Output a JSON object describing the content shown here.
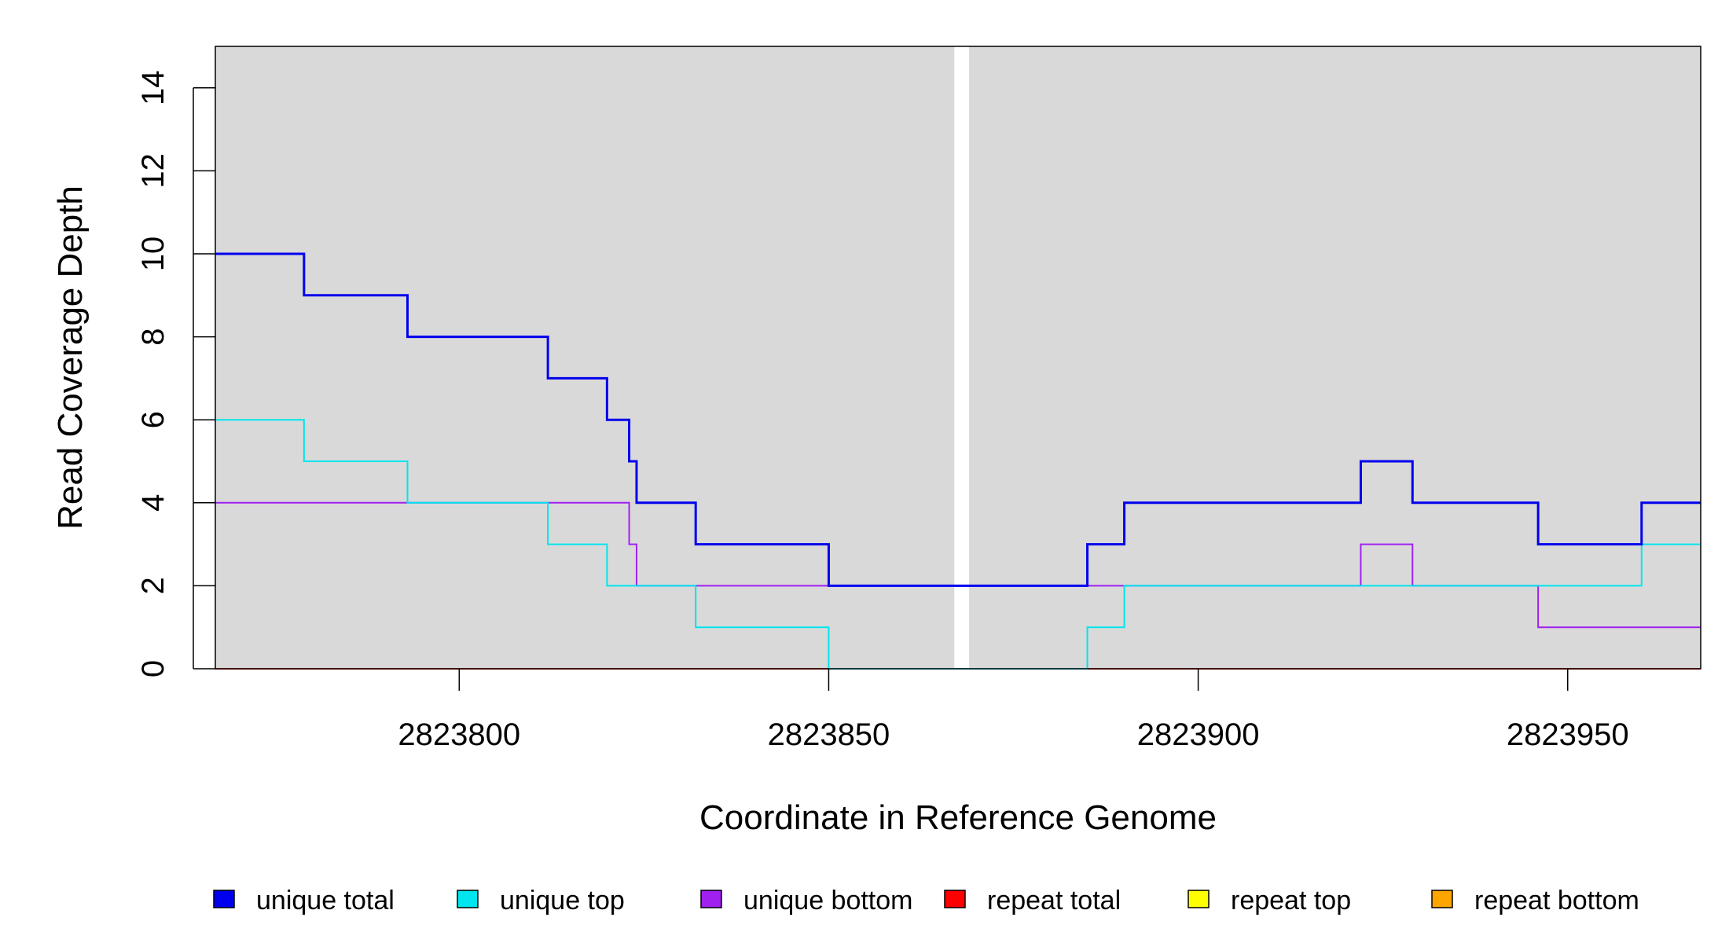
{
  "chart_data": {
    "type": "line",
    "step": true,
    "title": "",
    "xlabel": "Coordinate in Reference Genome",
    "ylabel": "Read Coverage Depth",
    "xlim": [
      2823767,
      2823968
    ],
    "ylim": [
      0,
      15
    ],
    "x_ticks": [
      2823800,
      2823850,
      2823900,
      2823950
    ],
    "y_ticks": [
      0,
      2,
      4,
      6,
      8,
      10,
      12,
      14
    ],
    "background_color": "#d9d9d9",
    "grid": false,
    "gap": {
      "start": 2823867,
      "end": 2823869,
      "color": "#ffffff"
    },
    "legend_position": "bottom",
    "series": [
      {
        "name": "unique total",
        "color": "#0000ee",
        "steps": [
          [
            2823767,
            10
          ],
          [
            2823779,
            9
          ],
          [
            2823793,
            8
          ],
          [
            2823812,
            7
          ],
          [
            2823820,
            6
          ],
          [
            2823823,
            5
          ],
          [
            2823824,
            4
          ],
          [
            2823832,
            3
          ],
          [
            2823850,
            2
          ],
          [
            2823885,
            3
          ],
          [
            2823890,
            4
          ],
          [
            2823922,
            5
          ],
          [
            2823929,
            4
          ],
          [
            2823946,
            3
          ],
          [
            2823960,
            4
          ]
        ]
      },
      {
        "name": "unique top",
        "color": "#00e5ee",
        "steps": [
          [
            2823767,
            6
          ],
          [
            2823779,
            5
          ],
          [
            2823793,
            4
          ],
          [
            2823812,
            3
          ],
          [
            2823820,
            2
          ],
          [
            2823832,
            1
          ],
          [
            2823850,
            0
          ],
          [
            2823885,
            1
          ],
          [
            2823890,
            2
          ],
          [
            2823960,
            3
          ]
        ]
      },
      {
        "name": "unique bottom",
        "color": "#a020f0",
        "steps": [
          [
            2823767,
            4
          ],
          [
            2823823,
            3
          ],
          [
            2823824,
            2
          ],
          [
            2823922,
            3
          ],
          [
            2823929,
            2
          ],
          [
            2823946,
            1
          ]
        ]
      },
      {
        "name": "repeat total",
        "color": "#ff0000",
        "steps": [
          [
            2823767,
            0
          ]
        ]
      },
      {
        "name": "repeat top",
        "color": "#ffff00",
        "steps": [
          [
            2823767,
            0
          ]
        ]
      },
      {
        "name": "repeat bottom",
        "color": "#ffa500",
        "steps": [
          [
            2823767,
            0
          ]
        ]
      }
    ]
  }
}
